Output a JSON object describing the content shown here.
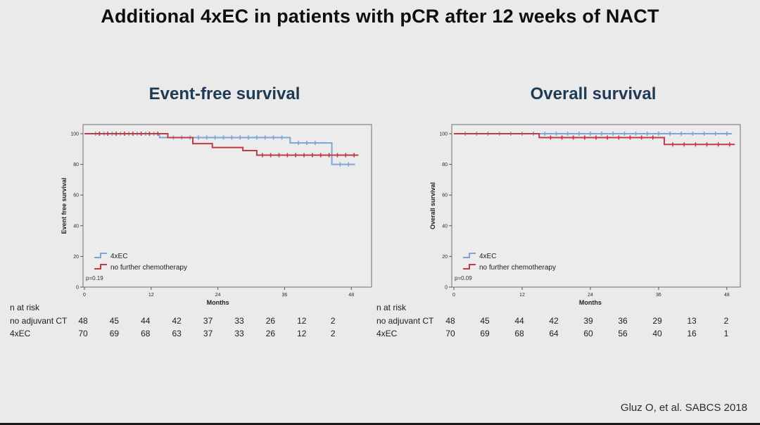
{
  "slide": {
    "title": "Additional 4xEC in patients with pCR after 12 weeks of NACT",
    "citation": "Gluz O, et al. SABCS 2018"
  },
  "colors": {
    "background": "#eaeaea",
    "title_text": "#0e0e0e",
    "chart_heading": "#1e3a55",
    "curve_blue": "#7fa5d5",
    "curve_red": "#c03a48",
    "axis_text": "#2b2b2b",
    "frame_stroke": "#707070"
  },
  "chart_data": [
    {
      "type": "line",
      "kind": "kaplan-meier-step",
      "title": "Event-free survival",
      "xlabel": "Months",
      "ylabel": "Event free survival",
      "p_value": "p=0.19",
      "xlim": [
        0,
        50
      ],
      "ylim": [
        0,
        100
      ],
      "x_ticks": [
        0,
        12,
        24,
        36,
        48
      ],
      "y_ticks": [
        100,
        80,
        60,
        40,
        20,
        0
      ],
      "grid": false,
      "legend_position": "inside-lower-left",
      "series": [
        {
          "name": "4xEC",
          "color": "#7fa5d5",
          "steps": [
            [
              0,
              100
            ],
            [
              13.5,
              97.5
            ],
            [
              37,
              94
            ],
            [
              44.5,
              80
            ]
          ],
          "end_month": 48.7,
          "censor_months": [
            2,
            3.5,
            5,
            6.5,
            8,
            9.5,
            11,
            12.5,
            16,
            17.5,
            19,
            20.5,
            22,
            23.5,
            25,
            26.5,
            28,
            29.5,
            31,
            32.5,
            34,
            35.5,
            38.5,
            40,
            41.5,
            46,
            47.5
          ]
        },
        {
          "name": "no further chemotherapy",
          "color": "#c03a48",
          "steps": [
            [
              0,
              100
            ],
            [
              15,
              97.5
            ],
            [
              19.5,
              93.5
            ],
            [
              23,
              91
            ],
            [
              28.5,
              89
            ],
            [
              31,
              86
            ]
          ],
          "end_month": 49.3,
          "censor_months": [
            2.7,
            4.2,
            5.7,
            7.2,
            8.7,
            10.2,
            11.7,
            13.2,
            32,
            33.5,
            35,
            36.5,
            38,
            39.5,
            41,
            42.5,
            44,
            45.5,
            47,
            48.5
          ]
        }
      ],
      "n_at_risk": {
        "header": "n at risk",
        "rows": [
          {
            "label": "no adjuvant CT",
            "values": [
              48,
              45,
              44,
              42,
              37,
              33,
              26,
              12,
              2
            ]
          },
          {
            "label": "4xEC",
            "values": [
              70,
              69,
              68,
              63,
              37,
              33,
              26,
              12,
              2
            ]
          }
        ]
      }
    },
    {
      "type": "line",
      "kind": "kaplan-meier-step",
      "title": "Overall survival",
      "xlabel": "Months",
      "ylabel": "Overall survival",
      "p_value": "p=0.09",
      "xlim": [
        0,
        50
      ],
      "ylim": [
        0,
        100
      ],
      "x_ticks": [
        0,
        12,
        24,
        36,
        48
      ],
      "y_ticks": [
        100,
        80,
        60,
        40,
        20,
        0
      ],
      "grid": false,
      "legend_position": "inside-lower-left",
      "series": [
        {
          "name": "4xEC",
          "color": "#7fa5d5",
          "steps": [
            [
              0,
              100
            ]
          ],
          "end_month": 48.9,
          "censor_months": [
            2,
            4,
            6,
            8,
            10,
            12,
            14,
            16,
            18,
            20,
            22,
            24,
            26,
            28,
            30,
            32,
            34,
            36,
            38,
            40,
            42,
            44,
            46,
            48
          ]
        },
        {
          "name": "no further chemotherapy",
          "color": "#c03a48",
          "steps": [
            [
              0,
              100
            ],
            [
              15,
              97.5
            ],
            [
              37,
              93
            ]
          ],
          "end_month": 49.4,
          "censor_months": [
            17,
            19,
            21,
            23,
            25,
            27,
            29,
            31,
            33,
            35,
            38.5,
            40.5,
            42.5,
            44.5,
            46.5,
            48.5
          ]
        }
      ],
      "n_at_risk": {
        "header": "n at risk",
        "rows": [
          {
            "label": "no adjuvant CT",
            "values": [
              48,
              45,
              44,
              42,
              39,
              36,
              29,
              13,
              2
            ]
          },
          {
            "label": "4xEC",
            "values": [
              70,
              69,
              68,
              64,
              60,
              56,
              40,
              16,
              1
            ]
          }
        ]
      }
    }
  ]
}
